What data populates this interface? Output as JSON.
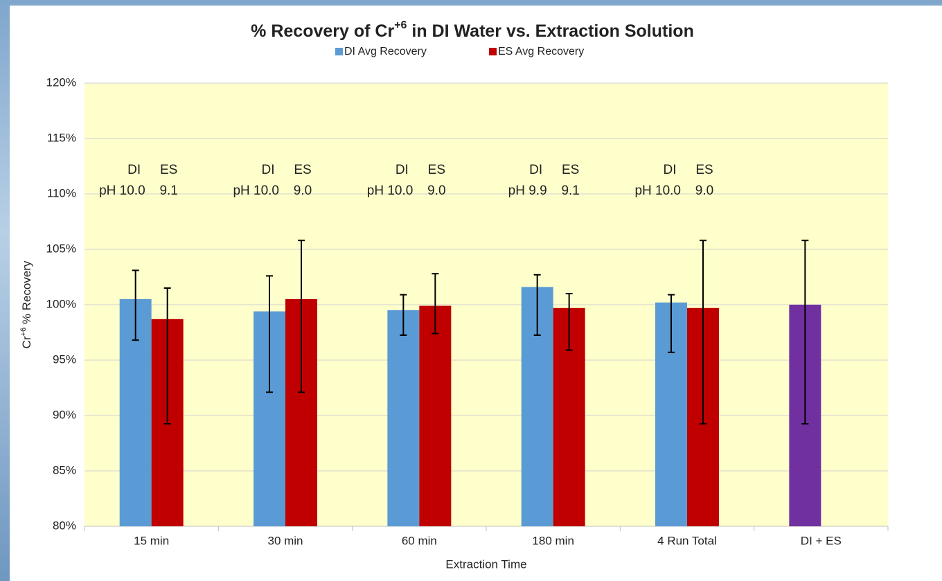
{
  "chart_data": {
    "type": "bar",
    "title": [
      "% Recovery of Cr",
      "+6",
      " in DI Water vs. Extraction Solution"
    ],
    "x_label": "Extraction Time",
    "y_label": [
      "Cr",
      "+6",
      " % Recovery"
    ],
    "categories": [
      "15 min",
      "30 min",
      "60 min",
      "180 min",
      "4 Run Total",
      "DI + ES"
    ],
    "series": [
      {
        "name": "DI Avg Recovery",
        "color": "#5b9bd5",
        "values": [
          100.5,
          99.4,
          99.5,
          101.6,
          100.2,
          null
        ],
        "err_low": [
          96.8,
          92.1,
          97.25,
          97.25,
          95.7,
          null
        ],
        "err_high": [
          103.1,
          102.6,
          100.9,
          102.7,
          100.9,
          null
        ]
      },
      {
        "name": "ES Avg Recovery",
        "color": "#c00000",
        "values": [
          98.7,
          100.5,
          99.9,
          99.7,
          99.7,
          null
        ],
        "err_low": [
          89.25,
          92.1,
          97.4,
          95.9,
          89.25,
          null
        ],
        "err_high": [
          101.5,
          105.8,
          102.8,
          101.0,
          105.8,
          null
        ]
      },
      {
        "color": "#7030a0",
        "values": [
          null,
          null,
          null,
          null,
          null,
          100.0
        ],
        "err_low": [
          null,
          null,
          null,
          null,
          null,
          89.25
        ],
        "err_high": [
          null,
          null,
          null,
          null,
          null,
          105.8
        ]
      }
    ],
    "annotations": [
      {
        "top": [
          "DI",
          "ES"
        ],
        "bottom": [
          "pH 10.0",
          "9.1"
        ]
      },
      {
        "top": [
          "DI",
          "ES"
        ],
        "bottom": [
          "pH 10.0",
          "9.0"
        ]
      },
      {
        "top": [
          "DI",
          "ES"
        ],
        "bottom": [
          "pH 10.0",
          "9.0"
        ]
      },
      {
        "top": [
          "DI",
          "ES"
        ],
        "bottom": [
          "pH 9.9",
          "9.1"
        ]
      },
      {
        "top": [
          "DI",
          "ES"
        ],
        "bottom": [
          "pH 10.0",
          "9.0"
        ]
      }
    ],
    "ylim": [
      80,
      120
    ],
    "yticks": [
      {
        "value": 80,
        "label": "80%"
      },
      {
        "value": 85,
        "label": "85%"
      },
      {
        "value": 90,
        "label": "90%"
      },
      {
        "value": 95,
        "label": "95%"
      },
      {
        "value": 100,
        "label": "100%"
      },
      {
        "value": 105,
        "label": "105%"
      },
      {
        "value": 110,
        "label": "110%"
      },
      {
        "value": 115,
        "label": "115%"
      },
      {
        "value": 120,
        "label": "120%"
      }
    ],
    "grid": true,
    "plot_background": "#ffffcc",
    "legend": "top"
  }
}
